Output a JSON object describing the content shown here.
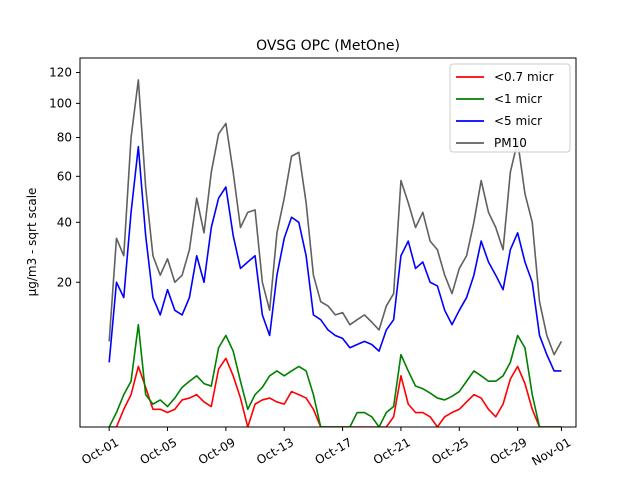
{
  "chart_data": {
    "type": "line",
    "title": "OVSG OPC (MetOne)",
    "xlabel": "",
    "ylabel": "µg/m3 - sqrt scale",
    "y_scale": "sqrt",
    "ylim": [
      0,
      130
    ],
    "xlim": [
      "2023-09-29",
      "2023-11-02"
    ],
    "x_ticks": [
      {
        "date": "2023-10-01",
        "label": "Oct-01"
      },
      {
        "date": "2023-10-05",
        "label": "Oct-05"
      },
      {
        "date": "2023-10-09",
        "label": "Oct-09"
      },
      {
        "date": "2023-10-13",
        "label": "Oct-13"
      },
      {
        "date": "2023-10-17",
        "label": "Oct-17"
      },
      {
        "date": "2023-10-21",
        "label": "Oct-21"
      },
      {
        "date": "2023-10-25",
        "label": "Oct-25"
      },
      {
        "date": "2023-10-29",
        "label": "Oct-29"
      },
      {
        "date": "2023-11-01",
        "label": "Nov-01"
      }
    ],
    "y_ticks": [
      20,
      40,
      60,
      80,
      100,
      120
    ],
    "grid": false,
    "legend_position": "top-right",
    "x": [
      "2023-10-01",
      "2023-10-01 12:00",
      "2023-10-02",
      "2023-10-02 12:00",
      "2023-10-03",
      "2023-10-03 12:00",
      "2023-10-04",
      "2023-10-04 12:00",
      "2023-10-05",
      "2023-10-05 12:00",
      "2023-10-06",
      "2023-10-06 12:00",
      "2023-10-07",
      "2023-10-07 12:00",
      "2023-10-08",
      "2023-10-08 12:00",
      "2023-10-09",
      "2023-10-09 12:00",
      "2023-10-10",
      "2023-10-10 12:00",
      "2023-10-11",
      "2023-10-11 12:00",
      "2023-10-12",
      "2023-10-12 12:00",
      "2023-10-13",
      "2023-10-13 12:00",
      "2023-10-14",
      "2023-10-14 12:00",
      "2023-10-15",
      "2023-10-15 12:00",
      "2023-10-16",
      "2023-10-16 12:00",
      "2023-10-17",
      "2023-10-17 12:00",
      "2023-10-18",
      "2023-10-18 12:00",
      "2023-10-19",
      "2023-10-19 12:00",
      "2023-10-20",
      "2023-10-20 12:00",
      "2023-10-21",
      "2023-10-21 12:00",
      "2023-10-22",
      "2023-10-22 12:00",
      "2023-10-23",
      "2023-10-23 12:00",
      "2023-10-24",
      "2023-10-24 12:00",
      "2023-10-25",
      "2023-10-25 12:00",
      "2023-10-26",
      "2023-10-26 12:00",
      "2023-10-27",
      "2023-10-27 12:00",
      "2023-10-28",
      "2023-10-28 12:00",
      "2023-10-29",
      "2023-10-29 12:00",
      "2023-10-30",
      "2023-10-30 12:00",
      "2023-10-31",
      "2023-10-31 12:00",
      "2023-11-01"
    ],
    "series": [
      {
        "name": "<0.7 micr",
        "color": "#ff0000",
        "values": [
          0.0,
          0.0,
          0.3,
          1.0,
          3.5,
          1.5,
          0.3,
          0.3,
          0.2,
          0.3,
          0.7,
          0.8,
          1.0,
          0.6,
          0.4,
          3.2,
          4.5,
          2.5,
          0.8,
          0.0,
          0.5,
          0.7,
          0.8,
          0.6,
          0.5,
          1.2,
          1.0,
          0.8,
          0.3,
          0.0,
          0.0,
          0.0,
          0.0,
          0.0,
          0.0,
          0.0,
          0.0,
          0.0,
          0.0,
          0.1,
          2.5,
          0.5,
          0.2,
          0.2,
          0.1,
          0.0,
          0.1,
          0.2,
          0.3,
          0.6,
          1.0,
          0.8,
          0.3,
          0.1,
          0.5,
          2.2,
          3.5,
          1.8,
          0.3,
          0.0,
          0.0,
          0.0,
          0.0
        ]
      },
      {
        "name": "<1 micr",
        "color": "#008000",
        "values": [
          0.0,
          0.2,
          1.0,
          2.0,
          10.0,
          1.0,
          0.5,
          0.7,
          0.4,
          0.8,
          1.5,
          2.0,
          2.5,
          1.8,
          1.6,
          6.0,
          8.0,
          5.5,
          2.0,
          0.3,
          1.0,
          1.5,
          2.5,
          3.0,
          2.5,
          3.0,
          3.5,
          3.0,
          1.0,
          0.0,
          0.0,
          0.0,
          0.0,
          0.0,
          0.2,
          0.2,
          0.1,
          0.0,
          0.2,
          0.4,
          5.0,
          3.0,
          1.6,
          1.4,
          1.1,
          0.8,
          0.7,
          0.9,
          1.2,
          2.0,
          3.0,
          2.5,
          2.0,
          2.0,
          2.5,
          4.0,
          8.0,
          6.0,
          1.0,
          0.0,
          0.0,
          0.0,
          0.0
        ]
      },
      {
        "name": "<5 micr",
        "color": "#0000ff",
        "values": [
          4.0,
          20.0,
          16.0,
          44.0,
          75.0,
          35.0,
          16.0,
          12.0,
          18.0,
          13.0,
          12.0,
          16.0,
          28.0,
          20.0,
          38.0,
          50.0,
          55.0,
          35.0,
          24.0,
          26.0,
          28.0,
          12.0,
          8.0,
          22.0,
          34.0,
          42.0,
          40.0,
          28.0,
          12.0,
          11.0,
          9.0,
          8.0,
          7.5,
          6.0,
          6.5,
          7.0,
          6.5,
          5.5,
          9.0,
          11.0,
          28.0,
          33.0,
          24.0,
          26.0,
          20.0,
          19.0,
          13.0,
          10.0,
          13.0,
          16.0,
          22.0,
          33.0,
          26.0,
          22.0,
          18.0,
          30.0,
          36.0,
          26.0,
          20.0,
          8.0,
          5.0,
          3.0,
          3.0
        ]
      },
      {
        "name": "PM10",
        "color": "#606060",
        "values": [
          7.0,
          34.0,
          28.0,
          80.0,
          115.0,
          55.0,
          28.0,
          22.0,
          27.0,
          20.0,
          22.0,
          30.0,
          50.0,
          36.0,
          62.0,
          82.0,
          88.0,
          62.0,
          38.0,
          44.0,
          45.0,
          20.0,
          13.0,
          36.0,
          50.0,
          70.0,
          72.0,
          48.0,
          22.0,
          15.0,
          14.0,
          12.0,
          12.5,
          10.0,
          11.0,
          12.0,
          10.5,
          9.0,
          14.0,
          17.0,
          58.0,
          48.0,
          38.0,
          44.0,
          33.0,
          30.0,
          22.0,
          17.0,
          24.0,
          28.0,
          40.0,
          58.0,
          44.0,
          38.0,
          30.0,
          62.0,
          78.0,
          52.0,
          40.0,
          15.0,
          8.0,
          5.0,
          7.0
        ]
      }
    ]
  }
}
